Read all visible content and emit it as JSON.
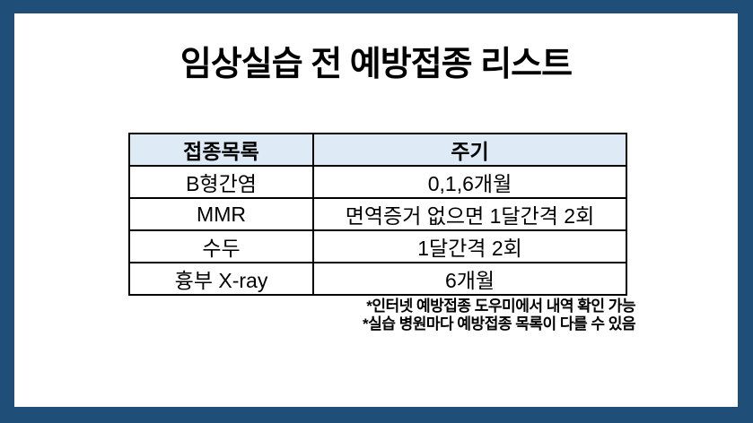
{
  "slide": {
    "title": "임상실습 전 예방접종 리스트",
    "table": {
      "headers": [
        "접종목록",
        "주기"
      ],
      "rows": [
        {
          "name": "B형간염",
          "cycle": "0,1,6개월"
        },
        {
          "name": "MMR",
          "cycle": "면역증거 없으면 1달간격 2회"
        },
        {
          "name": "수두",
          "cycle": "1달간격 2회"
        },
        {
          "name": "흉부 X-ray",
          "cycle": "6개월"
        }
      ]
    },
    "footnotes": [
      "*인터넷 예방접종 도우미에서 내역 확인 가능",
      "*실습 병원마다 예방접종 목록이 다를 수 있음"
    ],
    "colors": {
      "frame_border": "#1F4E79",
      "table_header_bg": "#DEEBF7",
      "table_border": "#000000",
      "text": "#000000",
      "background": "#FFFFFF"
    }
  }
}
